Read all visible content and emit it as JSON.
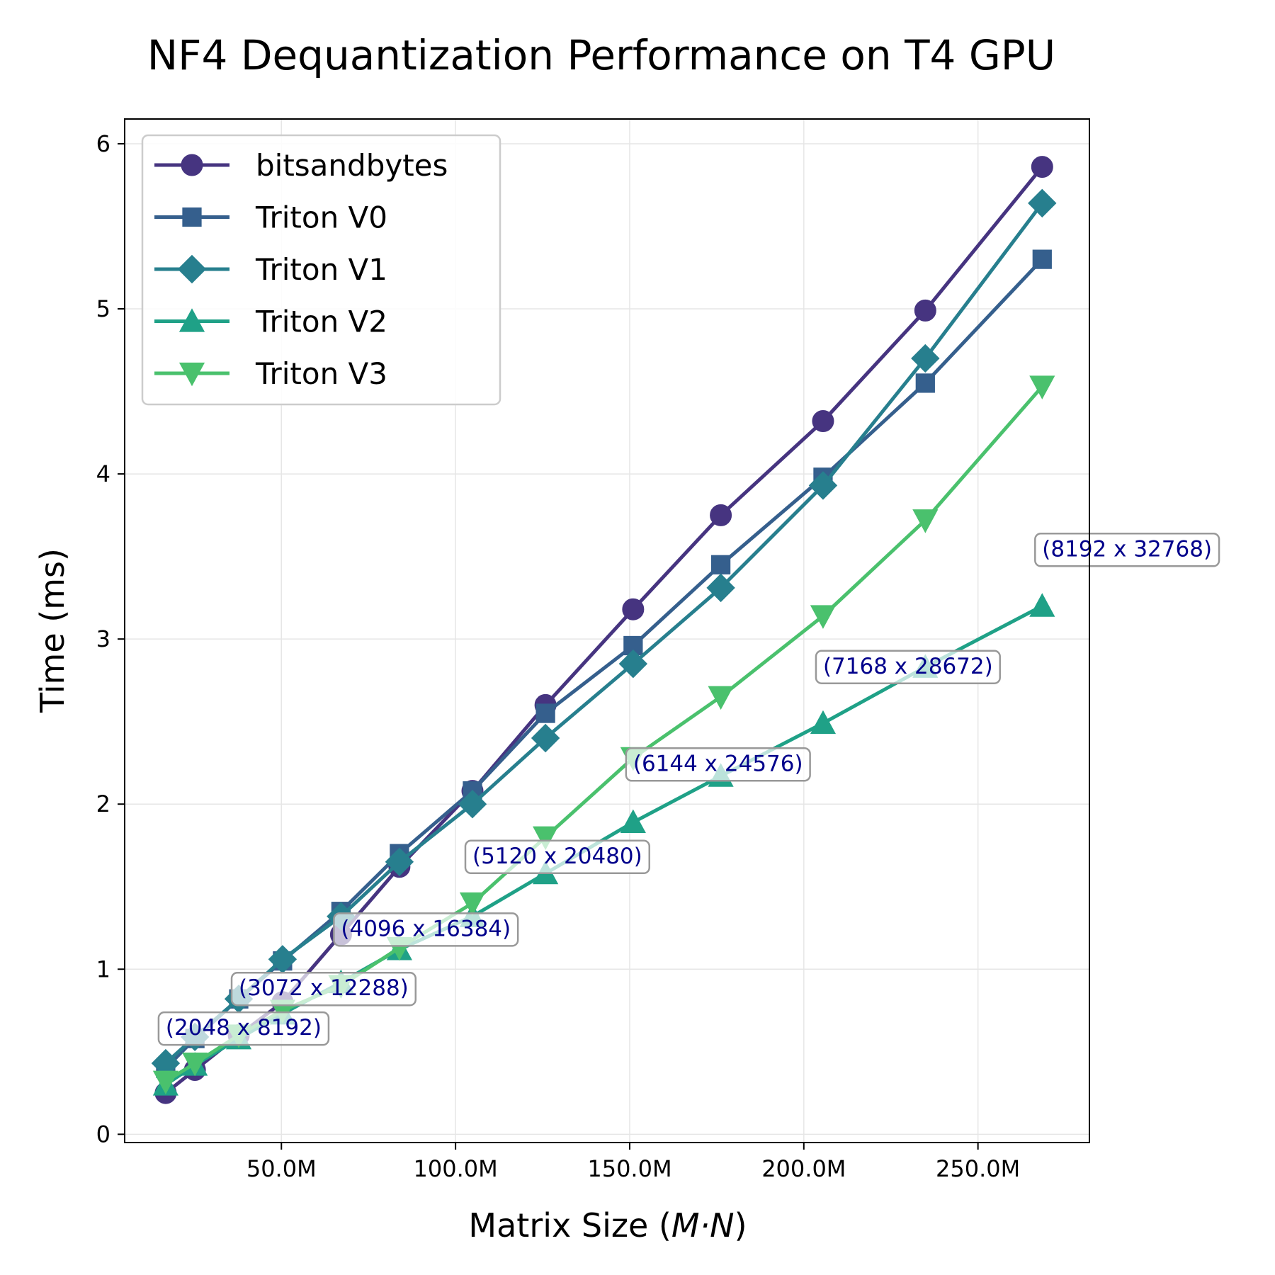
{
  "chart_data": {
    "type": "line",
    "title": "NF4 Dequantization Performance on T4 GPU",
    "xlabel": "Matrix Size (M·N)",
    "ylabel": "Time (ms)",
    "x": [
      16777216,
      25165824,
      37748736,
      50331648,
      67108864,
      83886080,
      104857600,
      125829120,
      150994944,
      176160768,
      205520896,
      234881024,
      268435456
    ],
    "xlim": [
      5000000,
      282000000
    ],
    "ylim": [
      -0.05,
      6.15
    ],
    "xticks": [
      50000000,
      100000000,
      150000000,
      200000000,
      250000000
    ],
    "xtick_labels": [
      "50.0M",
      "100.0M",
      "150.0M",
      "200.0M",
      "250.0M"
    ],
    "yticks": [
      0,
      1,
      2,
      3,
      4,
      5,
      6
    ],
    "ytick_labels": [
      "0",
      "1",
      "2",
      "3",
      "4",
      "5",
      "6"
    ],
    "grid": true,
    "legend_position": "upper-left",
    "series": [
      {
        "name": "bitsandbytes",
        "color": "#463480",
        "marker": "circle",
        "values": [
          0.25,
          0.39,
          0.6,
          0.8,
          1.21,
          1.62,
          2.08,
          2.6,
          3.18,
          3.75,
          4.32,
          4.99,
          5.86
        ]
      },
      {
        "name": "Triton V0",
        "color": "#355f8d",
        "marker": "square",
        "values": [
          0.4,
          0.58,
          0.82,
          1.05,
          1.35,
          1.7,
          2.08,
          2.55,
          2.96,
          3.45,
          3.98,
          4.55,
          5.3
        ]
      },
      {
        "name": "Triton V1",
        "color": "#277f8e",
        "marker": "diamond",
        "values": [
          0.43,
          0.59,
          0.82,
          1.06,
          1.32,
          1.65,
          2.0,
          2.4,
          2.85,
          3.31,
          3.93,
          4.7,
          5.64
        ]
      },
      {
        "name": "Triton V2",
        "color": "#1fa187",
        "marker": "triangle-up",
        "values": [
          0.3,
          0.42,
          0.58,
          0.73,
          0.92,
          1.12,
          1.32,
          1.58,
          1.89,
          2.17,
          2.49,
          2.83,
          3.2
        ]
      },
      {
        "name": "Triton V3",
        "color": "#4ac16d",
        "marker": "triangle-down",
        "values": [
          0.32,
          0.43,
          0.6,
          0.75,
          0.9,
          1.13,
          1.4,
          1.8,
          2.28,
          2.65,
          3.14,
          3.72,
          4.53
        ]
      }
    ],
    "annotations": [
      {
        "text": "(2048 x 8192)",
        "x": 16777216,
        "y": 0.61
      },
      {
        "text": "(3072 x 12288)",
        "x": 37748736,
        "y": 0.85
      },
      {
        "text": "(4096 x 16384)",
        "x": 67108864,
        "y": 1.21
      },
      {
        "text": "(5120 x 20480)",
        "x": 104857600,
        "y": 1.65
      },
      {
        "text": "(6144 x 24576)",
        "x": 150994944,
        "y": 2.21
      },
      {
        "text": "(7168 x 28672)",
        "x": 205520896,
        "y": 2.8
      },
      {
        "text": "(8192 x 32768)",
        "x": 268435456,
        "y": 3.51
      }
    ],
    "annotation_color": "#00008b"
  }
}
